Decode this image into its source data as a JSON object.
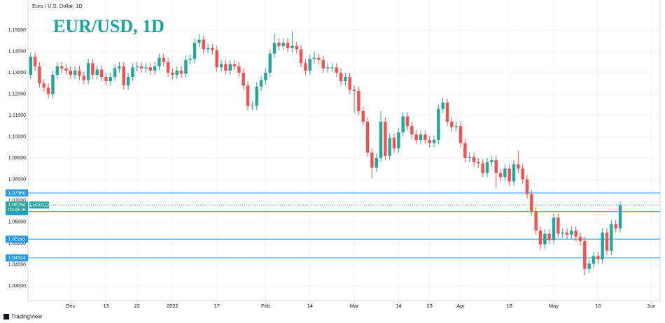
{
  "chart_data": {
    "type": "candlestick",
    "subtitle": "Euro / U.S. Dollar, 1D",
    "title": "EUR/USD, 1D",
    "brand": "TradingView",
    "up_color": "#26a69a",
    "down_color": "#ef5350",
    "level_color": "#2196f3",
    "ylim": [
      1.0231,
      1.1641
    ],
    "yticks": [
      {
        "value": 1.03,
        "label": "1.03000"
      },
      {
        "value": 1.04,
        "label": "1.04000"
      },
      {
        "value": 1.05,
        "label": "1.05000"
      },
      {
        "value": 1.06,
        "label": "1.06000"
      },
      {
        "value": 1.07,
        "label": "1.07000"
      },
      {
        "value": 1.08,
        "label": "1.08000"
      },
      {
        "value": 1.09,
        "label": "1.09000"
      },
      {
        "value": 1.1,
        "label": "1.10000"
      },
      {
        "value": 1.11,
        "label": "1.11000"
      },
      {
        "value": 1.12,
        "label": "1.12000"
      },
      {
        "value": 1.13,
        "label": "1.13000"
      },
      {
        "value": 1.14,
        "label": "1.14000"
      },
      {
        "value": 1.15,
        "label": "1.15000"
      }
    ],
    "xlim": [
      -0.6,
      142
    ],
    "xticks": [
      {
        "value": 9,
        "label": "Dec"
      },
      {
        "value": 17,
        "label": "13"
      },
      {
        "value": 24,
        "label": "22"
      },
      {
        "value": 32,
        "label": "2022"
      },
      {
        "value": 42,
        "label": "17"
      },
      {
        "value": 53,
        "label": "Feb"
      },
      {
        "value": 63,
        "label": "14"
      },
      {
        "value": 73,
        "label": "Mar"
      },
      {
        "value": 83,
        "label": "14"
      },
      {
        "value": 90,
        "label": "23"
      },
      {
        "value": 97,
        "label": "Apr"
      },
      {
        "value": 108,
        "label": "18"
      },
      {
        "value": 118,
        "label": "May"
      },
      {
        "value": 128,
        "label": "16"
      },
      {
        "value": 140,
        "label": "Jun"
      }
    ],
    "levels": [
      {
        "value": 1.0736,
        "label": "1.07360"
      },
      {
        "value": 1.06482,
        "label": "1.06482"
      },
      {
        "value": 1.05192,
        "label": "1.05192"
      },
      {
        "value": 1.04314,
        "label": "1.04314"
      }
    ],
    "last_price": {
      "value": 1.06794,
      "label": "1.06794",
      "countdown": "09:38:16",
      "symbol": "EURUSD"
    },
    "x": [
      0,
      1,
      2,
      3,
      4,
      5,
      6,
      7,
      8,
      9,
      10,
      11,
      12,
      13,
      14,
      15,
      16,
      17,
      18,
      19,
      20,
      21,
      22,
      23,
      24,
      25,
      26,
      27,
      28,
      29,
      30,
      31,
      32,
      33,
      34,
      35,
      36,
      37,
      38,
      39,
      40,
      41,
      42,
      43,
      44,
      45,
      46,
      47,
      48,
      49,
      50,
      51,
      52,
      53,
      54,
      55,
      56,
      57,
      58,
      59,
      60,
      61,
      62,
      63,
      64,
      65,
      66,
      67,
      68,
      69,
      70,
      71,
      72,
      73,
      74,
      75,
      76,
      77,
      78,
      79,
      80,
      81,
      82,
      83,
      84,
      85,
      86,
      87,
      88,
      89,
      90,
      91,
      92,
      93,
      94,
      95,
      96,
      97,
      98,
      99,
      100,
      101,
      102,
      103,
      104,
      105,
      106,
      107,
      108,
      109,
      110,
      111,
      112,
      113,
      114,
      115,
      116,
      117,
      118,
      119,
      120,
      121,
      122,
      123,
      124,
      125,
      126,
      127,
      128,
      129,
      130,
      131,
      132,
      133
    ],
    "open": [
      1.129,
      1.1375,
      1.133,
      1.125,
      1.123,
      1.12,
      1.129,
      1.133,
      1.132,
      1.131,
      1.129,
      1.131,
      1.1285,
      1.1265,
      1.1345,
      1.129,
      1.1315,
      1.128,
      1.126,
      1.128,
      1.132,
      1.133,
      1.124,
      1.128,
      1.1325,
      1.133,
      1.132,
      1.1325,
      1.131,
      1.133,
      1.137,
      1.135,
      1.13,
      1.129,
      1.131,
      1.1295,
      1.136,
      1.1365,
      1.144,
      1.1455,
      1.141,
      1.1415,
      1.1405,
      1.1325,
      1.134,
      1.131,
      1.134,
      1.133,
      1.13,
      1.124,
      1.1145,
      1.1145,
      1.1235,
      1.1265,
      1.13,
      1.139,
      1.144,
      1.1425,
      1.144,
      1.1415,
      1.1425,
      1.141,
      1.1345,
      1.131,
      1.1365,
      1.137,
      1.136,
      1.132,
      1.1325,
      1.1325,
      1.13,
      1.126,
      1.128,
      1.122,
      1.1215,
      1.112,
      1.107,
      1.0925,
      1.0855,
      1.09,
      1.107,
      1.091,
      1.0995,
      1.0945,
      1.102,
      1.1095,
      1.105,
      1.101,
      1.0985,
      1.101,
      1.0985,
      1.097,
      1.0985,
      1.113,
      1.116,
      1.107,
      1.1045,
      1.105,
      1.097,
      1.09,
      1.0905,
      1.088,
      1.0875,
      1.083,
      1.088,
      1.089,
      1.083,
      1.081,
      1.085,
      1.079,
      1.087,
      1.085,
      1.08,
      1.073,
      1.065,
      1.056,
      1.0495,
      1.0545,
      1.0515,
      1.062,
      1.0545,
      1.055,
      1.054,
      1.056,
      1.053,
      1.051,
      1.038,
      1.0405,
      1.044,
      1.0425,
      1.055,
      1.0465,
      1.059,
      1.057
    ],
    "high": [
      1.1395,
      1.1395,
      1.135,
      1.127,
      1.125,
      1.131,
      1.135,
      1.135,
      1.134,
      1.133,
      1.133,
      1.133,
      1.1305,
      1.1365,
      1.1365,
      1.1335,
      1.1335,
      1.13,
      1.13,
      1.134,
      1.135,
      1.135,
      1.13,
      1.1345,
      1.135,
      1.135,
      1.1345,
      1.1345,
      1.135,
      1.139,
      1.139,
      1.137,
      1.132,
      1.133,
      1.133,
      1.138,
      1.1385,
      1.146,
      1.148,
      1.1475,
      1.1435,
      1.1435,
      1.1425,
      1.136,
      1.136,
      1.136,
      1.136,
      1.135,
      1.132,
      1.126,
      1.1165,
      1.1255,
      1.1285,
      1.132,
      1.141,
      1.1485,
      1.146,
      1.146,
      1.146,
      1.1495,
      1.1445,
      1.143,
      1.1365,
      1.1385,
      1.14,
      1.139,
      1.138,
      1.1345,
      1.1345,
      1.1345,
      1.132,
      1.13,
      1.13,
      1.124,
      1.1235,
      1.114,
      1.109,
      1.0945,
      1.092,
      1.112,
      1.109,
      1.1015,
      1.1015,
      1.104,
      1.1115,
      1.1115,
      1.107,
      1.103,
      1.103,
      1.103,
      1.1005,
      1.1005,
      1.115,
      1.1185,
      1.118,
      1.109,
      1.107,
      1.107,
      1.099,
      1.0925,
      1.0925,
      1.09,
      1.0895,
      1.09,
      1.091,
      1.091,
      1.085,
      1.087,
      1.087,
      1.089,
      1.0935,
      1.087,
      1.082,
      1.075,
      1.067,
      1.058,
      1.0565,
      1.0565,
      1.064,
      1.064,
      1.057,
      1.057,
      1.058,
      1.058,
      1.055,
      1.053,
      1.0425,
      1.046,
      1.046,
      1.057,
      1.057,
      1.061,
      1.061,
      1.0695
    ],
    "low": [
      1.127,
      1.131,
      1.123,
      1.121,
      1.118,
      1.118,
      1.127,
      1.13,
      1.129,
      1.127,
      1.127,
      1.1265,
      1.1245,
      1.1245,
      1.127,
      1.127,
      1.126,
      1.124,
      1.124,
      1.126,
      1.13,
      1.122,
      1.122,
      1.126,
      1.1305,
      1.13,
      1.13,
      1.129,
      1.129,
      1.131,
      1.133,
      1.128,
      1.127,
      1.127,
      1.1275,
      1.1275,
      1.134,
      1.1345,
      1.142,
      1.139,
      1.139,
      1.1385,
      1.1305,
      1.1305,
      1.129,
      1.129,
      1.131,
      1.128,
      1.122,
      1.1125,
      1.1125,
      1.1125,
      1.1215,
      1.1245,
      1.128,
      1.137,
      1.1405,
      1.1405,
      1.1395,
      1.1395,
      1.139,
      1.1325,
      1.129,
      1.129,
      1.1345,
      1.134,
      1.13,
      1.13,
      1.1305,
      1.128,
      1.124,
      1.124,
      1.12,
      1.111,
      1.11,
      1.105,
      1.0905,
      1.0805,
      1.0835,
      1.088,
      1.089,
      1.089,
      1.0925,
      1.0925,
      1.1,
      1.103,
      1.099,
      1.0965,
      1.0965,
      1.0965,
      1.095,
      1.095,
      1.0965,
      1.111,
      1.105,
      1.1025,
      1.1025,
      1.095,
      1.088,
      1.088,
      1.086,
      1.0855,
      1.081,
      1.081,
      1.086,
      1.076,
      1.079,
      1.079,
      1.077,
      1.077,
      1.083,
      1.078,
      1.071,
      1.063,
      1.054,
      1.047,
      1.0475,
      1.0495,
      1.0495,
      1.0525,
      1.0525,
      1.052,
      1.052,
      1.051,
      1.049,
      1.035,
      1.036,
      1.0385,
      1.0405,
      1.0405,
      1.0445,
      1.0445,
      1.055,
      1.055
    ],
    "close": [
      1.1375,
      1.133,
      1.125,
      1.123,
      1.12,
      1.129,
      1.133,
      1.132,
      1.131,
      1.129,
      1.131,
      1.1285,
      1.1265,
      1.1345,
      1.129,
      1.1315,
      1.128,
      1.126,
      1.128,
      1.132,
      1.133,
      1.124,
      1.128,
      1.1325,
      1.133,
      1.132,
      1.1325,
      1.131,
      1.133,
      1.137,
      1.135,
      1.13,
      1.129,
      1.131,
      1.1295,
      1.136,
      1.1365,
      1.144,
      1.1455,
      1.141,
      1.1415,
      1.1405,
      1.1325,
      1.134,
      1.131,
      1.134,
      1.133,
      1.13,
      1.124,
      1.1145,
      1.1145,
      1.1235,
      1.1265,
      1.13,
      1.139,
      1.144,
      1.1425,
      1.144,
      1.1415,
      1.1425,
      1.141,
      1.1345,
      1.131,
      1.1365,
      1.137,
      1.136,
      1.132,
      1.1325,
      1.1325,
      1.13,
      1.126,
      1.128,
      1.122,
      1.1215,
      1.112,
      1.107,
      1.0925,
      1.0855,
      1.09,
      1.107,
      1.091,
      1.0995,
      1.0945,
      1.102,
      1.1095,
      1.105,
      1.101,
      1.0985,
      1.101,
      1.0985,
      1.097,
      1.0985,
      1.113,
      1.116,
      1.107,
      1.1045,
      1.105,
      1.097,
      1.09,
      1.0905,
      1.088,
      1.0875,
      1.083,
      1.088,
      1.089,
      1.083,
      1.081,
      1.085,
      1.079,
      1.087,
      1.085,
      1.08,
      1.073,
      1.065,
      1.056,
      1.0495,
      1.0545,
      1.0515,
      1.062,
      1.0545,
      1.055,
      1.054,
      1.056,
      1.053,
      1.051,
      1.038,
      1.0405,
      1.044,
      1.0425,
      1.055,
      1.0465,
      1.059,
      1.057,
      1.0679
    ]
  }
}
